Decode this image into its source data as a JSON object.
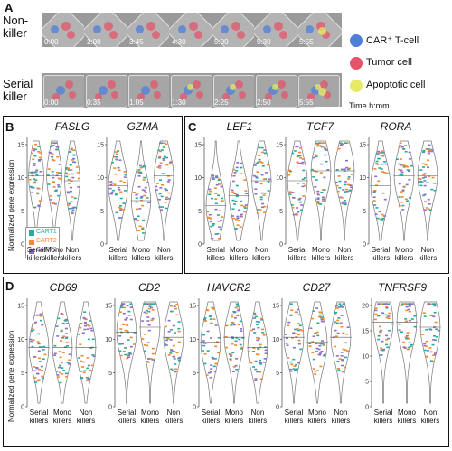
{
  "panels": {
    "a": "A",
    "b": "B",
    "c": "C",
    "d": "D"
  },
  "row_labels": {
    "nonkiller": "Non-\nkiller",
    "serial": "Serial\nkiller"
  },
  "row1_times": [
    "0:00",
    "2:00",
    "3:45",
    "4:30",
    "5:00",
    "5:30",
    "5:55"
  ],
  "row2_times": [
    "0:00",
    "0:35",
    "1:05",
    "1:30",
    "2:25",
    "2:50",
    "5:55"
  ],
  "legend": {
    "car_t": "CAR⁺ T-cell",
    "tumor": "Tumor cell",
    "apoptotic": "Apoptotic cell",
    "time_unit": "Time h:mm"
  },
  "colors": {
    "car_t": "#4f7fd8",
    "tumor": "#e5546a",
    "apoptotic": "#e7ea64",
    "cart1": "#2ba99a",
    "cart2": "#ef8a2e",
    "cart3": "#8e6ec8"
  },
  "groups": {
    "serial": "Serial\nkillers",
    "mono": "Mono\nkillers",
    "non": "Non\nkillers"
  },
  "ylabel": "Normalized gene expression",
  "inner_legend": [
    "CART1",
    "CART2",
    "CART3"
  ],
  "genes_b": [
    "FASLG",
    "GZMA"
  ],
  "genes_c": [
    "LEF1",
    "TCF7",
    "RORA"
  ],
  "genes_d": [
    "CD69",
    "CD2",
    "HAVCR2",
    "CD27",
    "TNFRSF9"
  ],
  "ticks_b": [
    "0",
    "5",
    "10",
    "15"
  ],
  "ticks_c1": [
    "0",
    "5",
    "10",
    "15"
  ],
  "ticks_c2": [
    "0",
    "5",
    "10",
    "15"
  ],
  "ticks_c3": [
    "0",
    "5",
    "10",
    "15"
  ],
  "ticks_d": [
    "0",
    "5",
    "10",
    "15"
  ],
  "ticks_d5": [
    "0",
    "5",
    "10",
    "15",
    "20"
  ]
}
